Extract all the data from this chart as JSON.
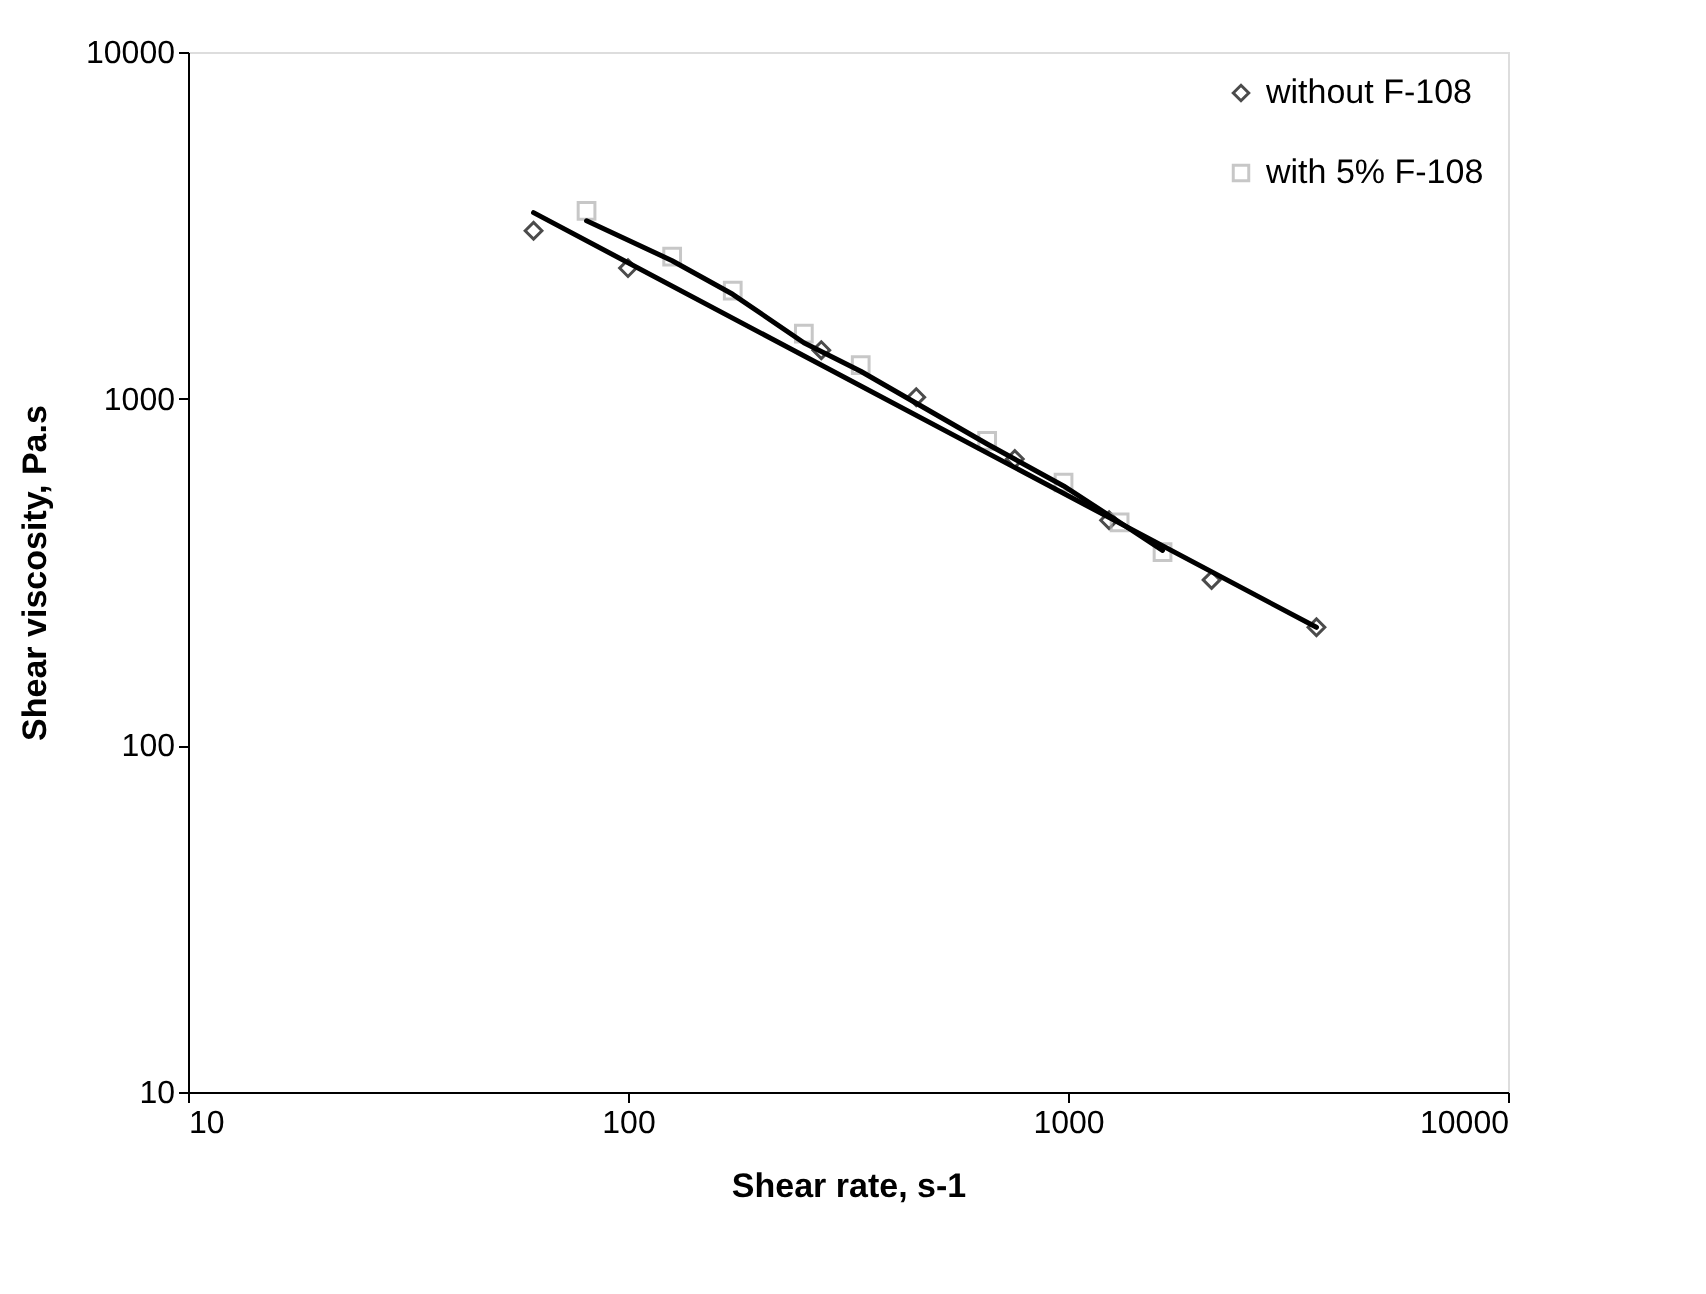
{
  "chart_data": {
    "type": "scatter",
    "xlabel": "Shear rate, s-1",
    "ylabel": "Shear viscosity, Pa.s",
    "log": "xy",
    "xlim": [
      10,
      10000
    ],
    "ylim": [
      10,
      10000
    ],
    "xticks": [
      10,
      100,
      1000,
      10000
    ],
    "yticks": [
      10,
      100,
      1000,
      10000
    ],
    "grid": false,
    "legend": "top right",
    "series": [
      {
        "name": "without F-108",
        "marker": "diamond",
        "color": "#000000",
        "x": [
          61,
          100,
          275,
          452,
          757,
          1240,
          2120,
          3670
        ],
        "values": [
          3050,
          2380,
          1380,
          1010,
          670,
          446,
          300,
          219
        ]
      },
      {
        "name": "with 5% F-108",
        "marker": "square",
        "color": "#b0b0b0",
        "x": [
          80.5,
          126,
          173,
          251,
          338,
          655,
          977,
          1310,
          1640
        ],
        "values": [
          3480,
          2570,
          2050,
          1540,
          1250,
          755,
          573,
          440,
          361
        ]
      },
      {
        "type": "line",
        "marker": "none",
        "line_style": "solid",
        "color": "#000000",
        "x": [
          61,
          3670
        ],
        "values": [
          3440,
          219
        ]
      },
      {
        "type": "line",
        "marker": "none",
        "line_style": "solid",
        "color": "#000000",
        "x": [
          80.5,
          126,
          173,
          251,
          338,
          655,
          977,
          1310,
          1640
        ],
        "values": [
          3260,
          2500,
          2000,
          1450,
          1200,
          740,
          560,
          440,
          365
        ]
      }
    ]
  }
}
